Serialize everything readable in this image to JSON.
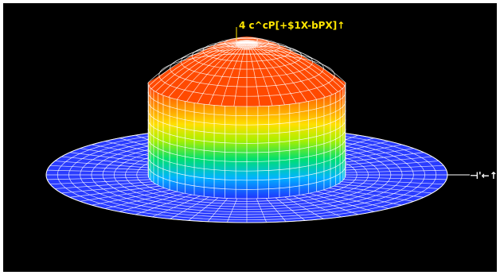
{
  "viewer": {
    "background": "#000000",
    "frame_color": "#ffffff",
    "mesh_color": "#ffffff",
    "plate_color": "#2a3cff",
    "label_color": "#ffe600"
  },
  "labels": {
    "peak_label": "4 c^cP[+$1X-bPX]↑",
    "edge_label": "⊣'←↑"
  },
  "surface": {
    "shape": "axisymmetric dome on a flat disc",
    "colormap": [
      "#2a3cff",
      "#00c8ff",
      "#00e060",
      "#b8f000",
      "#ffe600",
      "#ff9800",
      "#ff2a00"
    ]
  }
}
